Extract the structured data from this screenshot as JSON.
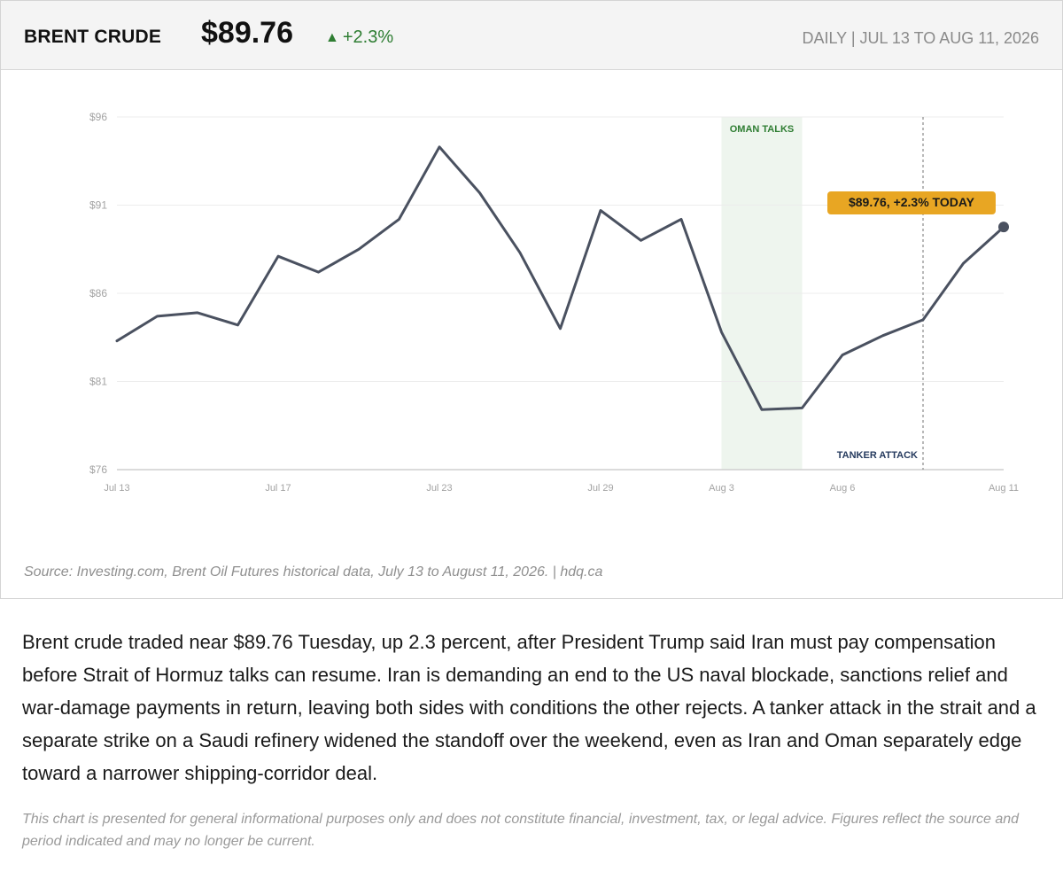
{
  "header": {
    "name": "BRENT CRUDE",
    "price": "$89.76",
    "change_arrow": "▲",
    "change": "+2.3%",
    "period": "DAILY  |  JUL 13 TO AUG 11, 2026"
  },
  "colors": {
    "line": "#4a5160",
    "up": "#2e7d32",
    "band_fill": "#eef5ee",
    "band_label": "#2e7d32",
    "callout_bg": "#e8a623",
    "event_label": "#253a5e",
    "grid": "#ececec",
    "axis_text": "#a3a3a3"
  },
  "chart_data": {
    "type": "line",
    "title": "",
    "xlabel": "",
    "ylabel": "",
    "ylim": [
      76,
      96
    ],
    "y_ticks": [
      96,
      91,
      86,
      81,
      76
    ],
    "y_tick_labels": [
      "$96",
      "$91",
      "$86",
      "$81",
      "$76"
    ],
    "x_tick_labels": [
      "Jul 13",
      "Jul 17",
      "Jul 23",
      "Jul 29",
      "Aug 3",
      "Aug 6",
      "Aug 11"
    ],
    "x_tick_index": [
      0,
      4,
      8,
      12,
      15,
      18,
      22
    ],
    "categories": [
      "Jul 13",
      "Jul 14",
      "Jul 15",
      "Jul 16",
      "Jul 17",
      "Jul 20",
      "Jul 21",
      "Jul 22",
      "Jul 23",
      "Jul 24",
      "Jul 27",
      "Jul 28",
      "Jul 29",
      "Jul 30",
      "Jul 31",
      "Aug 3",
      "Aug 4",
      "Aug 5",
      "Aug 6",
      "Aug 7",
      "Aug 8",
      "Aug 10",
      "Aug 11"
    ],
    "values": [
      83.3,
      84.7,
      84.9,
      84.2,
      88.1,
      87.2,
      88.5,
      90.2,
      94.3,
      91.7,
      88.3,
      84.0,
      90.7,
      89.0,
      90.2,
      83.8,
      79.4,
      79.5,
      82.5,
      83.6,
      84.5,
      87.7,
      89.76
    ],
    "grid": true,
    "legend": "none",
    "annotations": {
      "band": {
        "label": "OMAN TALKS",
        "from_index": 15,
        "to_index": 17
      },
      "event": {
        "label": "TANKER ATTACK",
        "index": 20
      },
      "callout": {
        "label": "$89.76, +2.3% TODAY",
        "index": 22
      }
    }
  },
  "source_note": "Source: Investing.com, Brent Oil Futures historical data, July 13 to August 11, 2026.  |  hdq.ca",
  "summary": "Brent crude traded near $89.76 Tuesday, up 2.3 percent, after President Trump said Iran must pay compensation before Strait of Hormuz talks can resume. Iran is demanding an end to the US naval blockade, sanctions relief and war-damage payments in return, leaving both sides with conditions the other rejects. A tanker attack in the strait and a separate strike on a Saudi refinery widened the standoff over the weekend, even as Iran and Oman separately edge toward a narrower shipping-corridor deal.",
  "disclaimer": "This chart is presented for general informational purposes only and does not constitute financial, investment, tax, or legal advice. Figures reflect the source and period indicated and may no longer be current."
}
